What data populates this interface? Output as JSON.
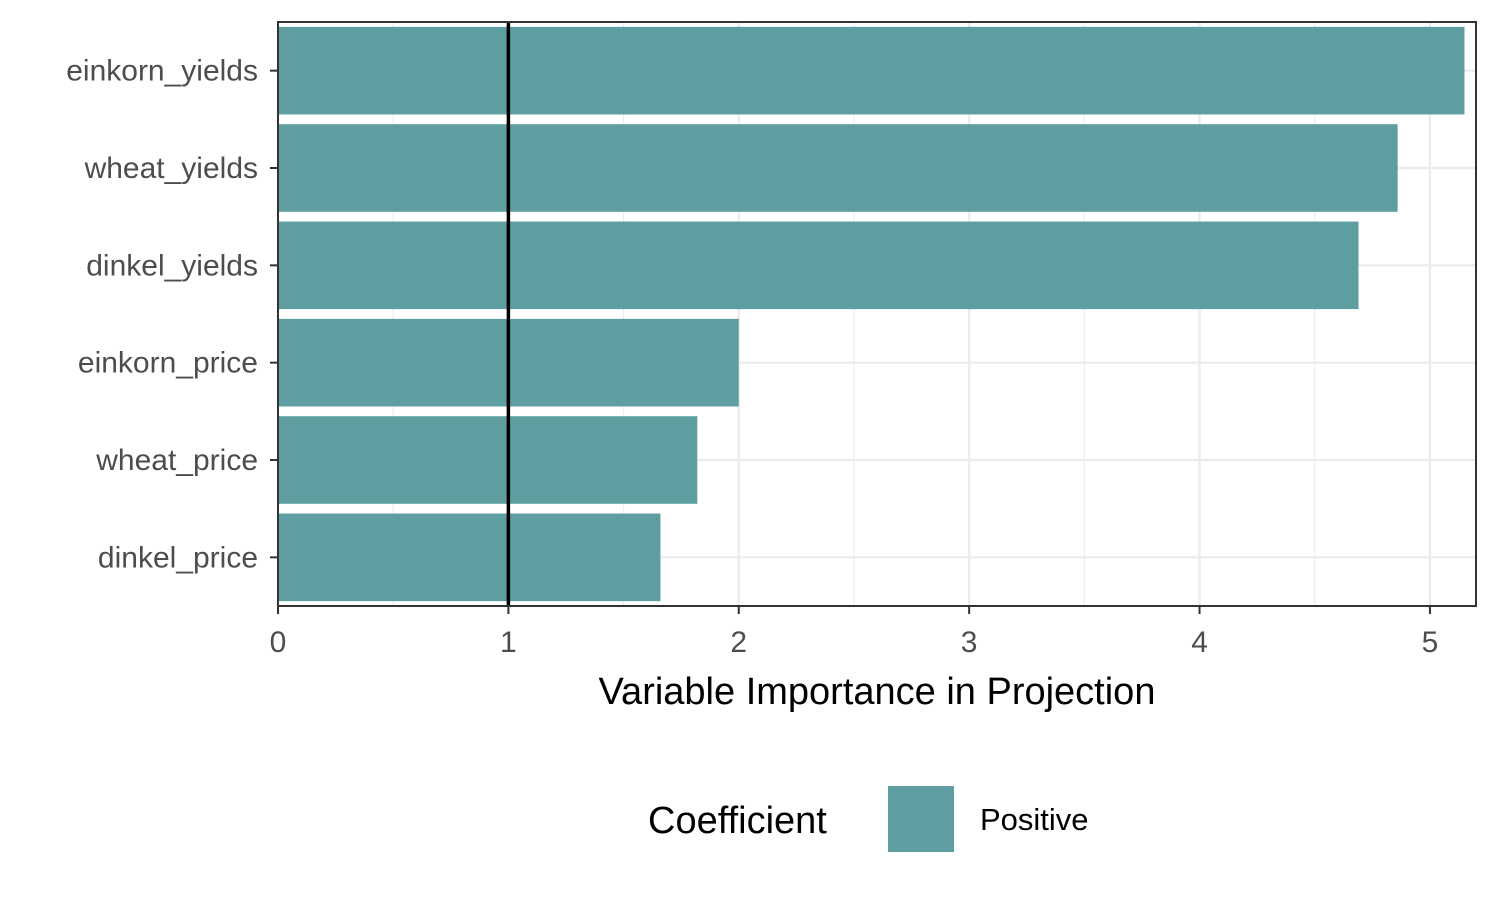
{
  "chart_data": {
    "type": "bar",
    "orientation": "horizontal",
    "categories": [
      "einkorn_yields",
      "wheat_yields",
      "dinkel_yields",
      "einkorn_price",
      "wheat_price",
      "dinkel_price"
    ],
    "values": [
      5.15,
      4.86,
      4.69,
      2.0,
      1.82,
      1.66
    ],
    "xlabel": "Variable Importance in Projection",
    "ylabel": "",
    "xlim": [
      0,
      5.2
    ],
    "xticks": [
      0,
      1,
      2,
      3,
      4,
      5
    ],
    "reference_line": 1,
    "grid": true,
    "legend": {
      "title": "Coefficient",
      "entries": [
        {
          "label": "Positive",
          "color": "#5f9ea0"
        }
      ],
      "placement": "bottom"
    },
    "colors": {
      "bar": "#5f9ea0",
      "reference_line": "#000000",
      "grid": "#ebebeb",
      "panel_border": "#333333"
    }
  }
}
